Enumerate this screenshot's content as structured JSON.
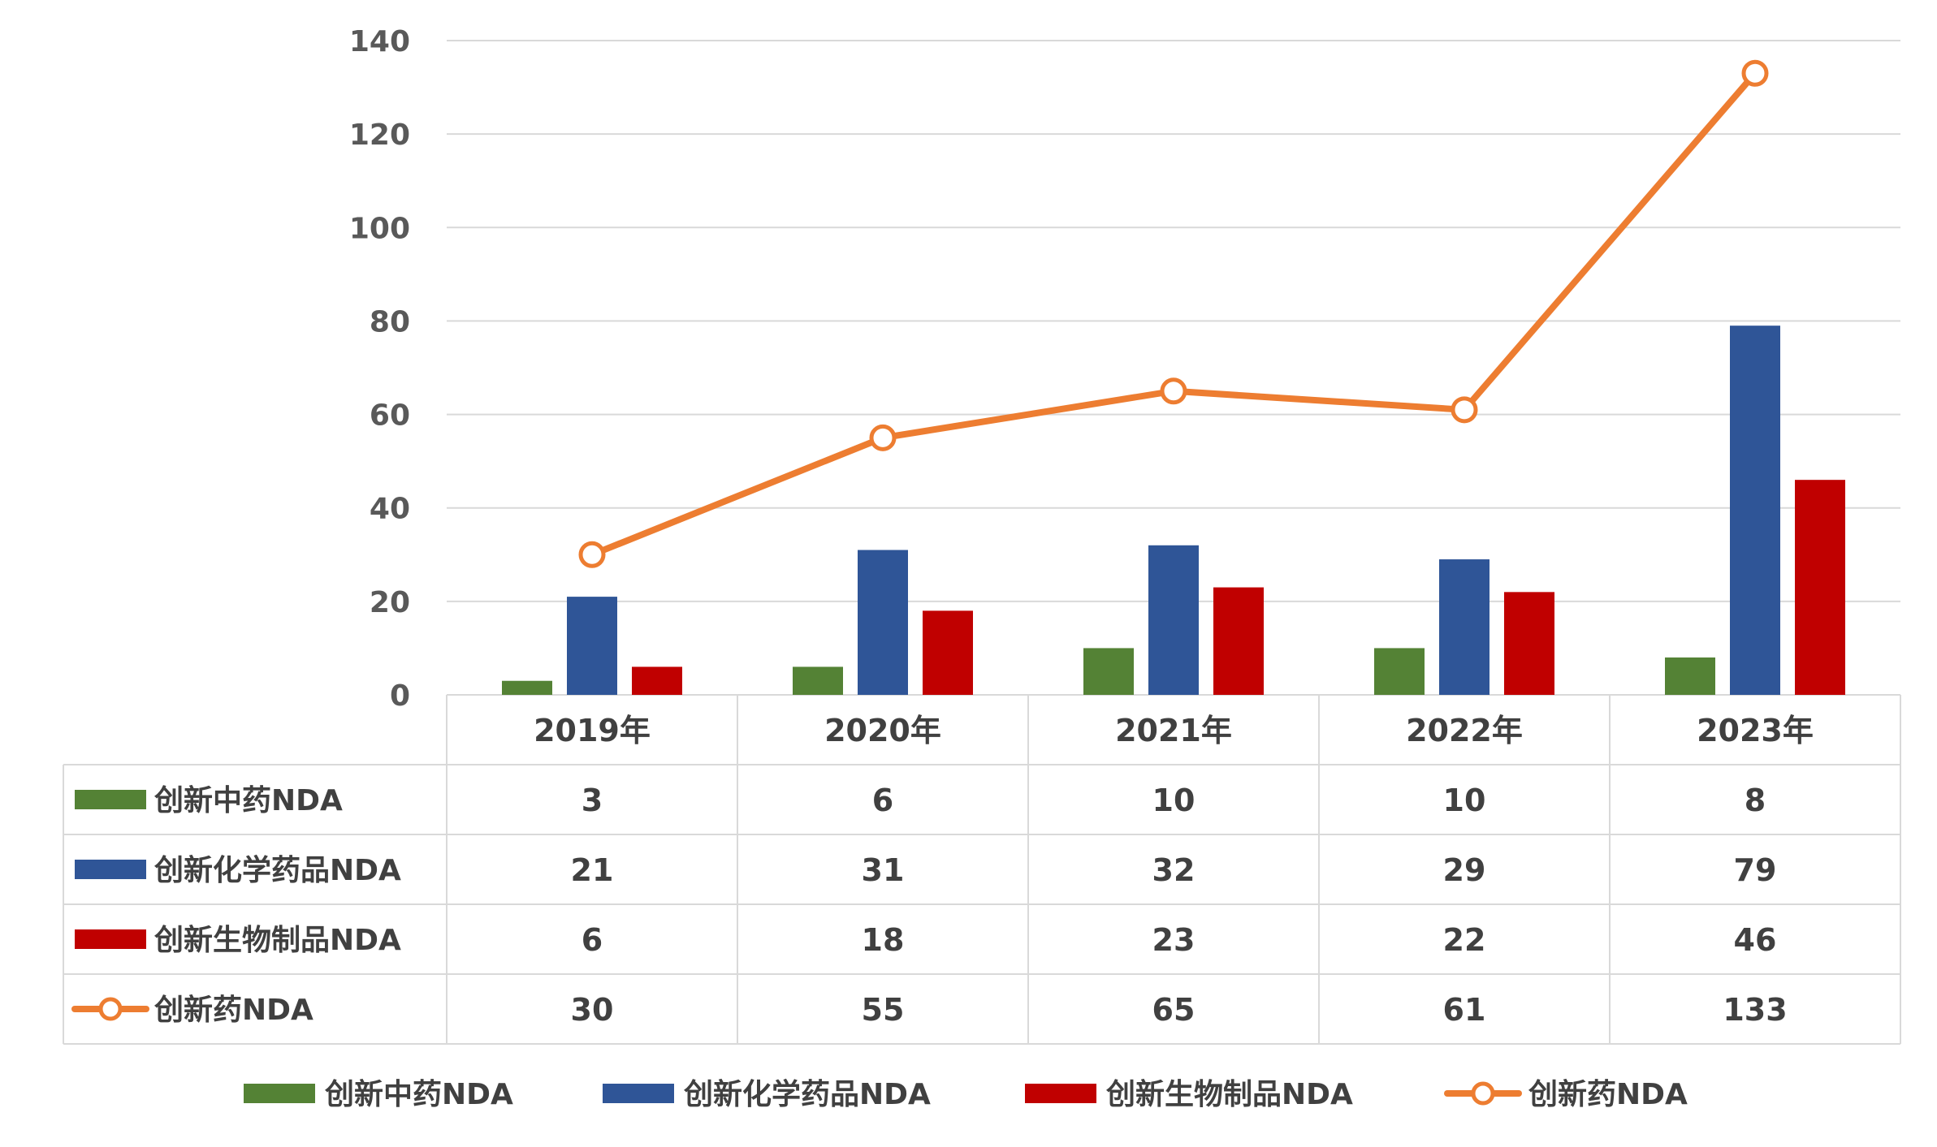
{
  "chart_data": {
    "type": "bar",
    "categories": [
      "2019年",
      "2020年",
      "2021年",
      "2022年",
      "2023年"
    ],
    "ylim": [
      0,
      140
    ],
    "yticks": [
      0,
      20,
      40,
      60,
      80,
      100,
      120,
      140
    ],
    "grid": true,
    "legend_position": "bottom",
    "data_table": true,
    "series": [
      {
        "name": "创新中药NDA",
        "kind": "bar",
        "color": "#548235",
        "values": [
          3,
          6,
          10,
          10,
          8
        ]
      },
      {
        "name": "创新化学药品NDA",
        "kind": "bar",
        "color": "#2F5597",
        "values": [
          21,
          31,
          32,
          29,
          79
        ]
      },
      {
        "name": "创新生物制品NDA",
        "kind": "bar",
        "color": "#C00000",
        "values": [
          6,
          18,
          23,
          22,
          46
        ]
      },
      {
        "name": "创新药NDA",
        "kind": "line",
        "marker": "circle",
        "color": "#ED7D31",
        "values": [
          30,
          55,
          65,
          61,
          133
        ]
      }
    ]
  }
}
